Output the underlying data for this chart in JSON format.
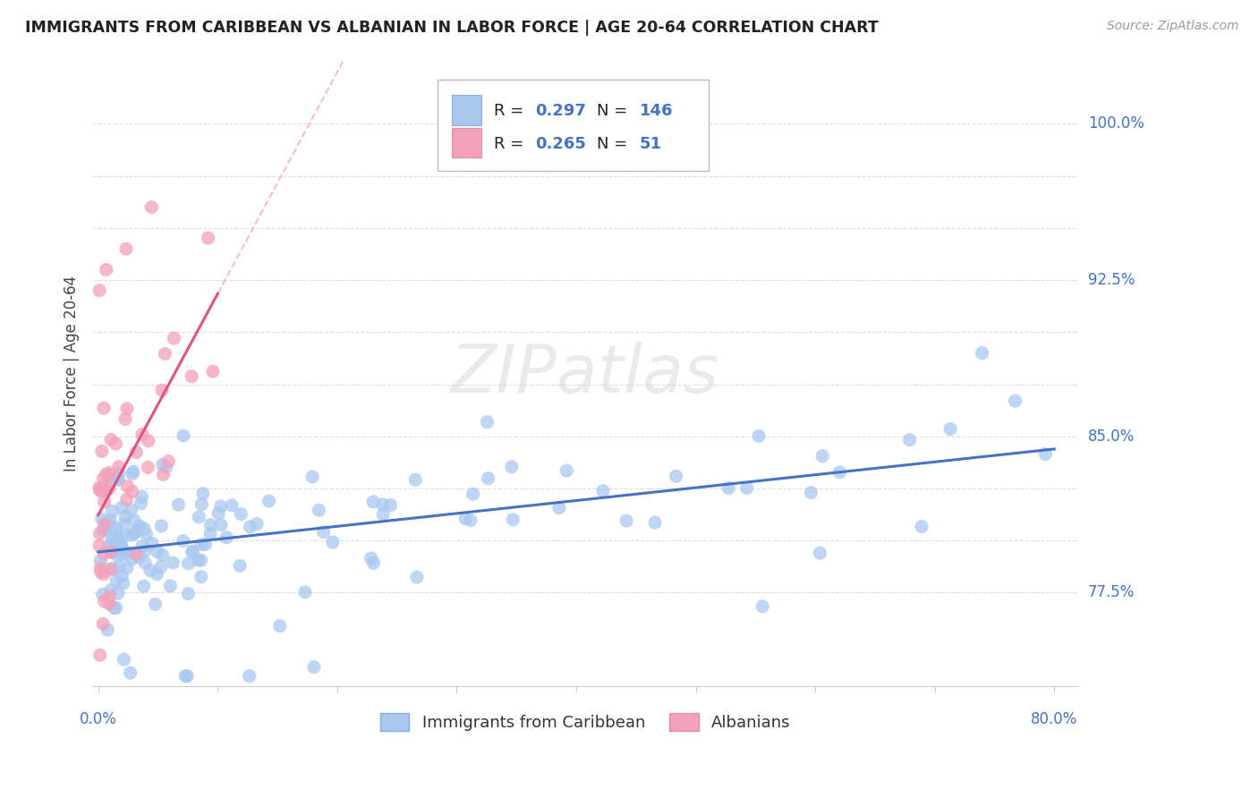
{
  "title": "IMMIGRANTS FROM CARIBBEAN VS ALBANIAN IN LABOR FORCE | AGE 20-64 CORRELATION CHART",
  "source": "Source: ZipAtlas.com",
  "ylabel": "In Labor Force | Age 20-64",
  "ymin": 0.73,
  "ymax": 1.03,
  "xmin": -0.005,
  "xmax": 0.82,
  "r_caribbean": 0.297,
  "n_caribbean": 146,
  "r_albanian": 0.265,
  "n_albanian": 51,
  "color_caribbean": "#A8C8F0",
  "color_albanian": "#F4A0B8",
  "color_line_caribbean": "#4472C4",
  "color_line_albanian": "#E05080",
  "color_trend_dashed": "#F4A0B8",
  "legend_label_caribbean": "Immigrants from Caribbean",
  "legend_label_albanian": "Albanians",
  "y_right_vals": [
    0.775,
    0.8,
    0.825,
    0.85,
    0.875,
    0.9,
    0.925,
    0.95,
    0.975,
    1.0
  ],
  "y_right_labels": [
    "77.5%",
    "",
    "",
    "85.0%",
    "",
    "",
    "92.5%",
    "",
    "",
    "100.0%"
  ]
}
